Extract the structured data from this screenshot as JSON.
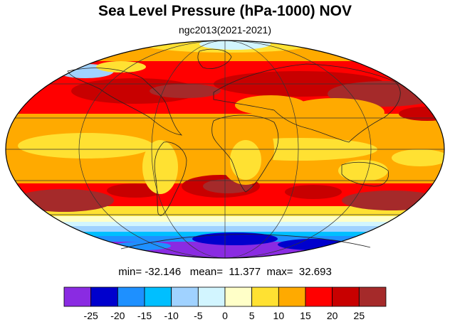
{
  "header": {
    "title": "Sea Level Pressure (hPa-1000) NOV",
    "subtitle": "ngc2013(2021-2021)"
  },
  "stats": {
    "min_label": "min=",
    "min": "-32.146",
    "mean_label": "mean=",
    "mean": "11.377",
    "max_label": "max=",
    "max": "32.693"
  },
  "colorbar": {
    "colors": [
      "#8a2be2",
      "#0000cd",
      "#1e90ff",
      "#00bfff",
      "#a0d2ff",
      "#d2f5ff",
      "#ffffc8",
      "#ffe132",
      "#ffaa00",
      "#ff0000",
      "#c80000",
      "#a52a2a"
    ],
    "tick_labels": [
      "-25",
      "-20",
      "-15",
      "-10",
      "-5",
      "0",
      "5",
      "10",
      "15",
      "20",
      "25"
    ]
  },
  "map_colors": {
    "ocean_ring_polar": "#8a2be2",
    "antarctic_core": "#0000cd",
    "band_blue": "#1e90ff",
    "band_cyan": "#00bfff",
    "band_light_blue": "#a0d2ff",
    "band_pale": "#d2f5ff",
    "band_cream": "#ffffc8",
    "band_yellow": "#ffe132",
    "band_orange": "#ffaa00",
    "band_red": "#ff0000",
    "band_dark_red": "#c80000",
    "band_brown": "#a52a2a"
  }
}
